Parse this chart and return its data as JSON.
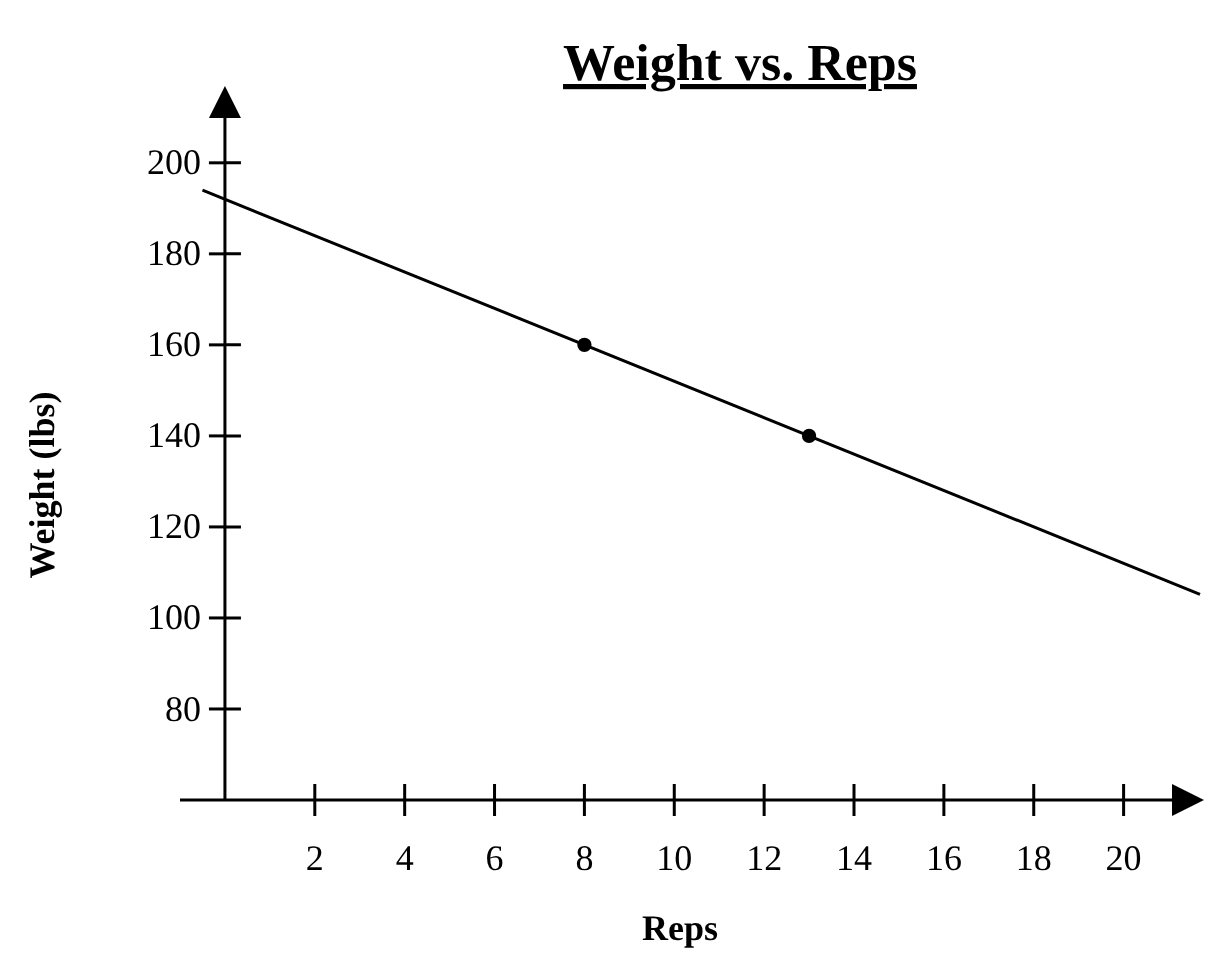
{
  "chart_data": {
    "type": "line",
    "title": "Weight vs. Reps",
    "xlabel": "Reps",
    "ylabel": "Weight (lbs)",
    "xlim": [
      -1,
      21.7
    ],
    "ylim": [
      60,
      216
    ],
    "xticks": [
      2,
      4,
      6,
      8,
      10,
      12,
      14,
      16,
      18,
      20
    ],
    "yticks": [
      80,
      100,
      120,
      140,
      160,
      180,
      200
    ],
    "grid": false,
    "series": [
      {
        "type": "line",
        "color": "#000000",
        "x": [
          -0.5,
          21.7
        ],
        "values": [
          194,
          105.2
        ],
        "marker": "none"
      },
      {
        "type": "scatter",
        "color": "#000000",
        "x": [
          8,
          13
        ],
        "values": [
          160,
          140
        ],
        "marker": "circle"
      }
    ]
  }
}
